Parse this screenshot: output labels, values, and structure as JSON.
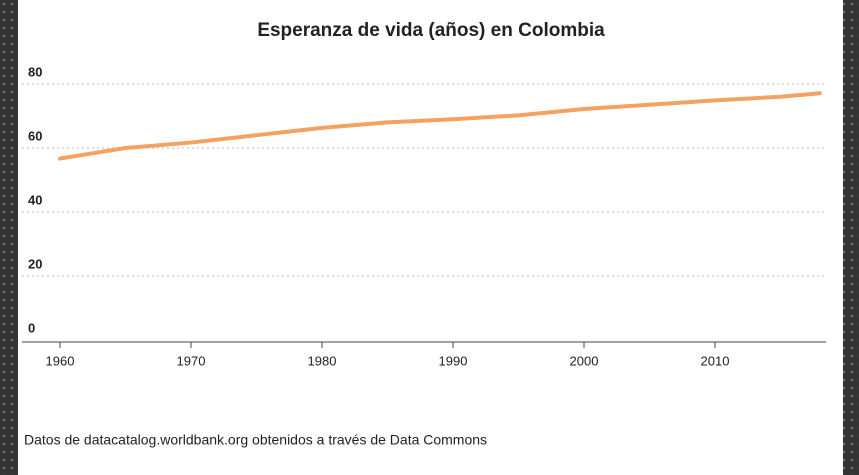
{
  "chart_data": {
    "type": "line",
    "title": "Esperanza de vida (años) en Colombia",
    "source": "Datos de datacatalog.worldbank.org obtenidos a través de Data Commons",
    "x": [
      1960,
      1965,
      1970,
      1975,
      1980,
      1985,
      1990,
      1995,
      2000,
      2005,
      2010,
      2015,
      2018
    ],
    "series": [
      {
        "name": "Colombia",
        "color": "#f4a261",
        "values": [
          56.7,
          60.0,
          61.7,
          64.0,
          66.3,
          68.0,
          69.0,
          70.2,
          72.2,
          73.5,
          74.9,
          76.0,
          77.1
        ]
      }
    ],
    "xlim": [
      1958,
      2019
    ],
    "xticks": [
      1960,
      1970,
      1980,
      1990,
      2000,
      2010
    ],
    "ylim": [
      0,
      80
    ],
    "yticks": [
      0,
      20,
      40,
      60,
      80
    ],
    "grid": true
  }
}
